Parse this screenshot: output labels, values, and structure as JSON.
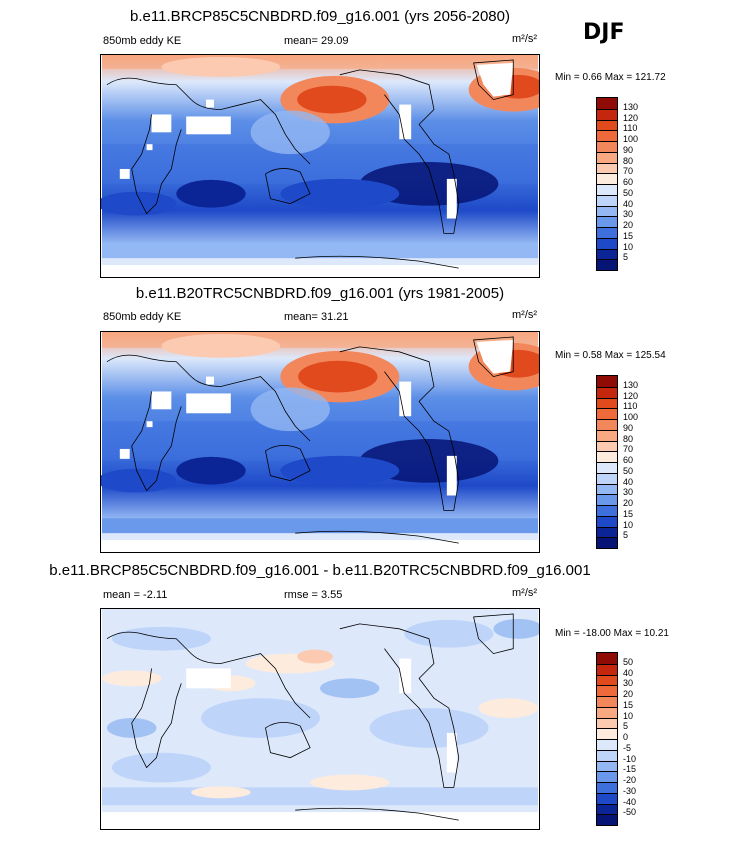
{
  "season": "DJF",
  "panels": [
    {
      "id": "future",
      "title": "b.e11.BRCP85C5CNBDRD.f09_g16.001 (yrs 2056-2080)",
      "left_label": "850mb eddy KE",
      "center_label": "mean=  29.09",
      "units": "m²/s²",
      "minmax": "Min =  0.66 Max = 121.72",
      "levels": [
        "130",
        "120",
        "110",
        "100",
        "90",
        "80",
        "70",
        "60",
        "50",
        "40",
        "30",
        "20",
        "15",
        "10",
        "5"
      ],
      "colors": [
        "#8e0b06",
        "#c4260e",
        "#e14a1d",
        "#ee6a3a",
        "#f3875c",
        "#f8a982",
        "#fbcab0",
        "#fdebde",
        "#dde9fb",
        "#bed4f9",
        "#94b8f3",
        "#6a98ea",
        "#3d70dd",
        "#1e49c8",
        "#0b2596",
        "#061475"
      ]
    },
    {
      "id": "historical",
      "title": "b.e11.B20TRC5CNBDRD.f09_g16.001 (yrs 1981-2005)",
      "left_label": "850mb eddy KE",
      "center_label": "mean=  31.21",
      "units": "m²/s²",
      "minmax": "Min =  0.58 Max = 125.54",
      "levels": [
        "130",
        "120",
        "110",
        "100",
        "90",
        "80",
        "70",
        "60",
        "50",
        "40",
        "30",
        "20",
        "15",
        "10",
        "5"
      ],
      "colors": [
        "#8e0b06",
        "#c4260e",
        "#e14a1d",
        "#ee6a3a",
        "#f3875c",
        "#f8a982",
        "#fbcab0",
        "#fdebde",
        "#dde9fb",
        "#bed4f9",
        "#94b8f3",
        "#6a98ea",
        "#3d70dd",
        "#1e49c8",
        "#0b2596",
        "#061475"
      ]
    },
    {
      "id": "difference",
      "title": "b.e11.BRCP85C5CNBDRD.f09_g16.001 - b.e11.B20TRC5CNBDRD.f09_g16.001",
      "left_label": "mean =  -2.11",
      "center_label": "rmse =  3.55",
      "units": "m²/s²",
      "minmax": "Min = -18.00 Max =  10.21",
      "levels": [
        "50",
        "40",
        "30",
        "20",
        "15",
        "10",
        "5",
        "0",
        "-5",
        "-10",
        "-15",
        "-20",
        "-30",
        "-40",
        "-50"
      ],
      "colors": [
        "#8e0b06",
        "#c4260e",
        "#e14a1d",
        "#ee6a3a",
        "#f3875c",
        "#f8a982",
        "#fbcab0",
        "#fdebde",
        "#dde9fb",
        "#bed4f9",
        "#94b8f3",
        "#6a98ea",
        "#3d70dd",
        "#1e49c8",
        "#0b2596",
        "#061475"
      ]
    }
  ],
  "chart_data": {
    "type": "heatmap",
    "season": "DJF",
    "variable": "850mb eddy KE",
    "units": "m²/s²",
    "fields": [
      {
        "name": "b.e11.BRCP85C5CNBDRD.f09_g16.001 (yrs 2056-2080)",
        "mean": 29.09,
        "min": 0.66,
        "max": 121.72,
        "contour_levels": [
          5,
          10,
          15,
          20,
          30,
          40,
          50,
          60,
          70,
          80,
          90,
          100,
          110,
          120,
          130
        ]
      },
      {
        "name": "b.e11.B20TRC5CNBDRD.f09_g16.001 (yrs 1981-2005)",
        "mean": 31.21,
        "min": 0.58,
        "max": 125.54,
        "contour_levels": [
          5,
          10,
          15,
          20,
          30,
          40,
          50,
          60,
          70,
          80,
          90,
          100,
          110,
          120,
          130
        ]
      },
      {
        "name": "b.e11.BRCP85C5CNBDRD.f09_g16.001 - b.e11.B20TRC5CNBDRD.f09_g16.001",
        "mean": -2.11,
        "rmse": 3.55,
        "min": -18.0,
        "max": 10.21,
        "contour_levels": [
          -50,
          -40,
          -30,
          -20,
          -15,
          -10,
          -5,
          0,
          5,
          10,
          15,
          20,
          30,
          40,
          50
        ]
      }
    ]
  }
}
